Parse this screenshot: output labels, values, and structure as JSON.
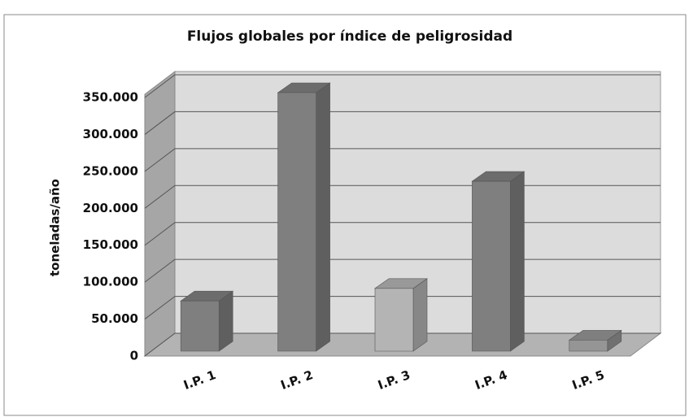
{
  "chart_data": {
    "type": "bar3d",
    "title": "Flujos globales por índice de peligrosidad",
    "y_label": "toneladas/año",
    "categories": [
      "I.P. 1",
      "I.P. 2",
      "I.P. 3",
      "I.P. 4",
      "I.P. 5"
    ],
    "values": [
      68000,
      350000,
      85000,
      230000,
      15000
    ],
    "colors": [
      "#7f7f7f",
      "#7f7f7f",
      "#b4b4b4",
      "#7f7f7f",
      "#959595"
    ],
    "ylim": [
      0,
      350000
    ],
    "yticks": [
      0,
      {
        "value": 50000,
        "label": "50.000"
      },
      {
        "value": 100000,
        "label": "100.000"
      },
      {
        "value": 150000,
        "label": "150.000"
      },
      {
        "value": 200000,
        "label": "200.000"
      },
      {
        "value": 250000,
        "label": "250.000"
      },
      {
        "value": 300000,
        "label": "300.000"
      },
      {
        "value": 350000,
        "label": "350.000"
      }
    ],
    "grid": true
  }
}
